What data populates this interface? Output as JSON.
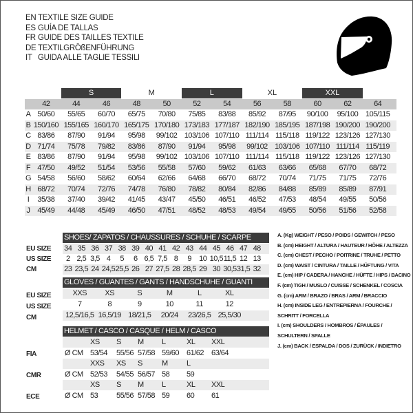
{
  "titles": [
    {
      "code": "EN",
      "text": "TEXTILE SIZE GUIDE"
    },
    {
      "code": "ES",
      "text": "GUÍA DE TALLAS"
    },
    {
      "code": "FR",
      "text": "GUIDE DES TAILLES TEXTILE"
    },
    {
      "code": "DE",
      "text": "TEXTILGRÖßENFÜHRUNG"
    },
    {
      "code": "IT",
      "text": "GUIDA ALLE TAGLIE TESSILI"
    }
  ],
  "icon": "helmet-icon",
  "textile": {
    "size_groups": [
      "S",
      "M",
      "L",
      "XL",
      "XXL"
    ],
    "sizes": [
      "42",
      "44",
      "46",
      "48",
      "50",
      "52",
      "54",
      "56",
      "58",
      "60",
      "62",
      "64"
    ],
    "rows": [
      {
        "label": "A",
        "values": [
          "50/60",
          "55/65",
          "60/70",
          "65/75",
          "70/80",
          "75/85",
          "83/88",
          "85/92",
          "87/95",
          "90/100",
          "95/100",
          "105/115"
        ]
      },
      {
        "label": "B",
        "values": [
          "150/160",
          "155/165",
          "160/170",
          "165/175",
          "170/180",
          "173/183",
          "177/187",
          "182/190",
          "185/195",
          "187/198",
          "190/200",
          "190/200"
        ]
      },
      {
        "label": "C",
        "values": [
          "83/86",
          "87/90",
          "91/94",
          "95/98",
          "99/102",
          "103/106",
          "107/110",
          "111/114",
          "115/118",
          "119/122",
          "123/126",
          "127/130"
        ]
      },
      {
        "label": "D",
        "values": [
          "71/74",
          "75/78",
          "79/82",
          "83/86",
          "87/90",
          "91/94",
          "95/98",
          "99/102",
          "103/106",
          "107/110",
          "111/114",
          "115/119"
        ]
      },
      {
        "label": "E",
        "values": [
          "83/86",
          "87/90",
          "91/94",
          "95/98",
          "99/102",
          "103/106",
          "107/110",
          "111/114",
          "115/118",
          "119/122",
          "123/126",
          "127/130"
        ]
      },
      {
        "label": "F",
        "values": [
          "47/50",
          "49/52",
          "51/54",
          "53/56",
          "55/58",
          "57/60",
          "59/62",
          "61/63",
          "63/66",
          "65/68",
          "67/70",
          "68/72"
        ]
      },
      {
        "label": "G",
        "values": [
          "54/58",
          "56/60",
          "58/62",
          "60/64",
          "62/66",
          "64/68",
          "66/70",
          "68/72",
          "70/74",
          "71/75",
          "71/75",
          "72/76"
        ]
      },
      {
        "label": "H",
        "values": [
          "68/72",
          "70/74",
          "72/76",
          "74/78",
          "76/80",
          "78/82",
          "80/84",
          "82/86",
          "84/88",
          "85/89",
          "85/89",
          "87/91"
        ]
      },
      {
        "label": "I",
        "values": [
          "35/38",
          "37/40",
          "39/42",
          "41/45",
          "43/47",
          "45/50",
          "46/51",
          "46/52",
          "47/53",
          "48/54",
          "49/55",
          "50/56"
        ]
      },
      {
        "label": "J",
        "values": [
          "45/49",
          "44/48",
          "45/49",
          "46/50",
          "47/51",
          "48/52",
          "48/53",
          "49/54",
          "49/55",
          "50/56",
          "51/56",
          "52/58"
        ]
      }
    ]
  },
  "shoes": {
    "title": "SHOES/ ZAPATOS / CHAUSSURES / SCHUHE / SCARPE",
    "rows": [
      {
        "label": "EU SIZE",
        "values": [
          "34",
          "35",
          "36",
          "37",
          "38",
          "39",
          "40",
          "41",
          "42",
          "43",
          "44",
          "45",
          "46",
          "47",
          "48"
        ]
      },
      {
        "label": "US SIZE",
        "values": [
          "2",
          "2,5",
          "3,5",
          "4",
          "5",
          "6",
          "6,5",
          "7,5",
          "8",
          "9",
          "10",
          "10,5",
          "11,5",
          "12",
          "13"
        ]
      },
      {
        "label": "CM",
        "values": [
          "23",
          "23,5",
          "24",
          "24,5",
          "25,5",
          "26",
          "27",
          "27,5",
          "28",
          "28,5",
          "29",
          "30",
          "30,5",
          "31,5",
          "32"
        ]
      }
    ]
  },
  "gloves": {
    "title": "GLOVES / GUANTES / GANTS / HANDSCHUHE / GUANTI",
    "rows": [
      {
        "label": "EU SIZE",
        "values": [
          "XXS",
          "XS",
          "S",
          "M",
          "L",
          "XL"
        ]
      },
      {
        "label": "US SIZE",
        "values": [
          "7",
          "8",
          "9",
          "10",
          "11",
          "12"
        ]
      },
      {
        "label": "CM",
        "values": [
          "12,5/16,5",
          "16,5/19",
          "18/21,5",
          "20/24",
          "23/26,5",
          "25,5/30"
        ]
      }
    ]
  },
  "helmet": {
    "title": "HELMET / CASCO / CASQUE / HELM / CASCO",
    "unit": "Ø CM",
    "standards": [
      {
        "label": "FIA",
        "sizes": [
          "XS",
          "S",
          "M",
          "L",
          "XL",
          "XXL"
        ],
        "values": [
          "53/54",
          "55/56",
          "57/58",
          "59/60",
          "61/62",
          "63/64"
        ]
      },
      {
        "label": "CMR",
        "sizes": [
          "XXS",
          "XS",
          "S",
          "M",
          "L"
        ],
        "values": [
          "52/53",
          "54/55",
          "56/57",
          "58",
          "59"
        ]
      },
      {
        "label": "ECE",
        "sizes": [
          "XS",
          "S",
          "M",
          "L",
          "XL",
          "XXL"
        ],
        "values": [
          "53",
          "55/56",
          "57/58",
          "59",
          "60",
          "61"
        ]
      }
    ]
  },
  "legend": [
    "A. (Kg) WEIGHT / PESO / POIDS / GEWITCH / PESO",
    "B. (cm) HEIGHT / ALTURA / HAUTEUR / HÖHE / ALTEZZA",
    "C. (cm) CHEST / PECHO / POITRINE / TRUHE / PETTO",
    "D. (cm) WAIST / CINTURA / TAILLE / HÜFTUNG / VITA",
    "E. (cm) HIP / CADERA / HANCHE / HÜFTE / HIPS /  BACINO",
    "F.  (cm) TIGH / MUSLO / CUISSE / SCHENKEL / COSCIA",
    "G. (cm) ARM  / BRAZO / BRAS / ARM / BRACCIO",
    "H. (cm) INSIDE LEG / ENTREPIERNA / FOURCHE /",
    "SCHRITT / FORCELLA",
    "I.  (cm) SHOULDERS / HOMBROS / ÉPAULES /",
    "SCHULTERN / SPALLE",
    "J. (cm) BACK / ESPALDA / DOS / ZURÜCK / INDIETRO"
  ]
}
